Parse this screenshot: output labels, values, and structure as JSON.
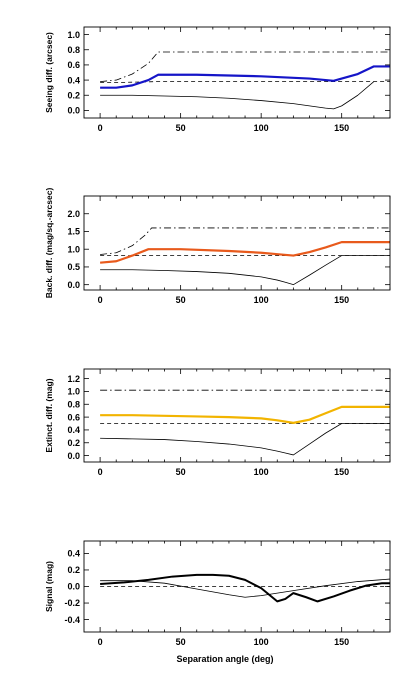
{
  "chart_data": [
    {
      "type": "line",
      "title": "",
      "xlabel": "",
      "ylabel": "Seeing diff. (arcsec)",
      "xlim": [
        -10,
        180
      ],
      "ylim": [
        -0.1,
        1.1
      ],
      "xticks": [
        0,
        50,
        100,
        150
      ],
      "yticks": [
        0.0,
        0.2,
        0.4,
        0.6,
        0.8,
        1.0
      ],
      "tick_labels_y": [
        "0.0",
        "0.2",
        "0.4",
        "0.6",
        "0.8",
        "1.0"
      ],
      "tick_labels_x": [
        "0",
        "50",
        "100",
        "150"
      ],
      "series": [
        {
          "style": "solid",
          "color": "#000000",
          "width": 0.8,
          "x": [
            0,
            20,
            40,
            60,
            80,
            100,
            120,
            130,
            140,
            145,
            150,
            160,
            170
          ],
          "y": [
            0.2,
            0.2,
            0.19,
            0.18,
            0.16,
            0.13,
            0.09,
            0.06,
            0.03,
            0.02,
            0.06,
            0.2,
            0.38
          ]
        },
        {
          "style": "dashed",
          "color": "#000000",
          "width": 0.8,
          "x": [
            0,
            15,
            36,
            100,
            150,
            170,
            180
          ],
          "y": [
            0.37,
            0.37,
            0.38,
            0.38,
            0.38,
            0.38,
            0.38
          ]
        },
        {
          "style": "dashdot",
          "color": "#000000",
          "width": 0.8,
          "x": [
            0,
            10,
            20,
            30,
            36,
            180
          ],
          "y": [
            0.38,
            0.4,
            0.48,
            0.62,
            0.77,
            0.77
          ]
        },
        {
          "style": "solid",
          "color": "#1515c8",
          "width": 2.2,
          "x": [
            0,
            10,
            20,
            30,
            36,
            60,
            80,
            100,
            120,
            130,
            140,
            145,
            150,
            160,
            170,
            175,
            180
          ],
          "y": [
            0.3,
            0.3,
            0.33,
            0.4,
            0.47,
            0.47,
            0.46,
            0.45,
            0.43,
            0.42,
            0.4,
            0.39,
            0.42,
            0.48,
            0.58,
            0.58,
            0.58
          ]
        }
      ]
    },
    {
      "type": "line",
      "title": "",
      "xlabel": "",
      "ylabel": "Back. diff. (mag/sq.-arcsec)",
      "xlim": [
        -10,
        180
      ],
      "ylim": [
        -0.15,
        2.5
      ],
      "xticks": [
        0,
        50,
        100,
        150
      ],
      "yticks": [
        0.0,
        0.5,
        1.0,
        1.5,
        2.0
      ],
      "tick_labels_y": [
        "0.0",
        "0.5",
        "1.0",
        "1.5",
        "2.0"
      ],
      "tick_labels_x": [
        "0",
        "50",
        "100",
        "150"
      ],
      "series": [
        {
          "style": "solid",
          "color": "#000000",
          "width": 0.8,
          "x": [
            0,
            20,
            40,
            60,
            80,
            100,
            110,
            115,
            120,
            130,
            140,
            150,
            180
          ],
          "y": [
            0.42,
            0.42,
            0.4,
            0.37,
            0.32,
            0.22,
            0.13,
            0.07,
            0.0,
            0.27,
            0.55,
            0.82,
            0.82
          ]
        },
        {
          "style": "dashed",
          "color": "#000000",
          "width": 0.8,
          "x": [
            0,
            180
          ],
          "y": [
            0.82,
            0.82
          ]
        },
        {
          "style": "dashdot",
          "color": "#000000",
          "width": 0.8,
          "x": [
            0,
            10,
            20,
            28,
            32,
            180
          ],
          "y": [
            0.85,
            0.9,
            1.1,
            1.4,
            1.6,
            1.6
          ]
        },
        {
          "style": "solid",
          "color": "#e85a1c",
          "width": 2.2,
          "x": [
            0,
            10,
            20,
            30,
            50,
            80,
            100,
            110,
            120,
            130,
            140,
            150,
            180
          ],
          "y": [
            0.62,
            0.66,
            0.82,
            1.0,
            1.0,
            0.95,
            0.9,
            0.86,
            0.82,
            0.92,
            1.05,
            1.2,
            1.2
          ]
        }
      ]
    },
    {
      "type": "line",
      "title": "",
      "xlabel": "",
      "ylabel": "Extinct. diff. (mag)",
      "xlim": [
        -10,
        180
      ],
      "ylim": [
        -0.1,
        1.35
      ],
      "xticks": [
        0,
        50,
        100,
        150
      ],
      "yticks": [
        0.0,
        0.2,
        0.4,
        0.6,
        0.8,
        1.0,
        1.2
      ],
      "tick_labels_y": [
        "0.0",
        "0.2",
        "0.4",
        "0.6",
        "0.8",
        "1.0",
        "1.2"
      ],
      "tick_labels_x": [
        "0",
        "50",
        "100",
        "150"
      ],
      "series": [
        {
          "style": "solid",
          "color": "#000000",
          "width": 0.8,
          "x": [
            0,
            20,
            40,
            60,
            80,
            100,
            110,
            115,
            120,
            130,
            140,
            150,
            180
          ],
          "y": [
            0.27,
            0.26,
            0.25,
            0.22,
            0.18,
            0.12,
            0.07,
            0.04,
            0.01,
            0.18,
            0.35,
            0.5,
            0.5
          ]
        },
        {
          "style": "dashed",
          "color": "#000000",
          "width": 0.8,
          "x": [
            0,
            180
          ],
          "y": [
            0.5,
            0.5
          ]
        },
        {
          "style": "dashdot",
          "color": "#000000",
          "width": 0.8,
          "x": [
            0,
            180
          ],
          "y": [
            1.02,
            1.02
          ]
        },
        {
          "style": "solid",
          "color": "#f2b400",
          "width": 2.2,
          "x": [
            0,
            20,
            40,
            60,
            80,
            100,
            110,
            120,
            130,
            140,
            150,
            160,
            180
          ],
          "y": [
            0.63,
            0.63,
            0.62,
            0.61,
            0.6,
            0.58,
            0.55,
            0.51,
            0.56,
            0.66,
            0.76,
            0.76,
            0.76
          ]
        }
      ]
    },
    {
      "type": "line",
      "title": "",
      "xlabel": "Separation angle (deg)",
      "ylabel": "Signal (mag)",
      "xlim": [
        -10,
        180
      ],
      "ylim": [
        -0.55,
        0.55
      ],
      "xticks": [
        0,
        50,
        100,
        150
      ],
      "yticks": [
        -0.4,
        -0.2,
        0.0,
        0.2,
        0.4
      ],
      "tick_labels_y": [
        "-0.4",
        "-0.2",
        "0.0",
        "0.2",
        "0.4"
      ],
      "tick_labels_x": [
        "0",
        "50",
        "100",
        "150"
      ],
      "series": [
        {
          "style": "dashed",
          "color": "#000000",
          "width": 0.8,
          "x": [
            0,
            180
          ],
          "y": [
            0.0,
            0.0
          ]
        },
        {
          "style": "solid",
          "color": "#000000",
          "width": 0.8,
          "x": [
            0,
            20,
            40,
            60,
            80,
            90,
            100,
            120,
            140,
            160,
            180
          ],
          "y": [
            0.07,
            0.07,
            0.04,
            -0.03,
            -0.1,
            -0.13,
            -0.11,
            -0.05,
            0.01,
            0.06,
            0.09
          ]
        },
        {
          "style": "solid",
          "color": "#000000",
          "width": 2.0,
          "x": [
            0,
            15,
            30,
            45,
            60,
            70,
            80,
            90,
            100,
            105,
            110,
            115,
            120,
            128,
            135,
            145,
            155,
            165,
            175,
            180
          ],
          "y": [
            0.03,
            0.05,
            0.08,
            0.12,
            0.14,
            0.14,
            0.13,
            0.08,
            -0.02,
            -0.1,
            -0.18,
            -0.15,
            -0.08,
            -0.13,
            -0.18,
            -0.12,
            -0.05,
            0.01,
            0.04,
            0.04
          ]
        }
      ]
    }
  ]
}
